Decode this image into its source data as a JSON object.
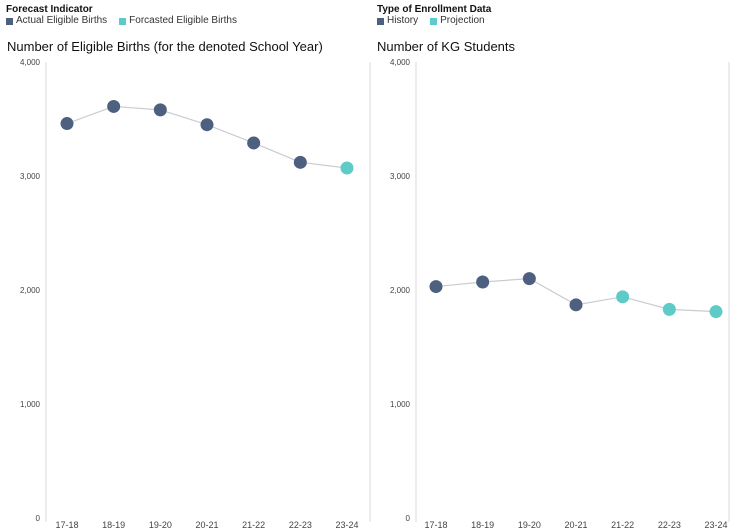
{
  "colors": {
    "actual": "#4e607f",
    "forecast": "#5fcbc8",
    "line": "#c9ccd2",
    "axis": "#d9d9d9"
  },
  "left_legend": {
    "title": "Forecast Indicator",
    "items": [
      {
        "label": "Actual Eligible Births",
        "color": "#4e607f"
      },
      {
        "label": "Forcasted Eligible Births",
        "color": "#5fcbc8"
      }
    ]
  },
  "right_legend": {
    "title": "Type of Enrollment Data",
    "items": [
      {
        "label": "History",
        "color": "#4e607f"
      },
      {
        "label": "Projection",
        "color": "#5fcbc8"
      }
    ]
  },
  "chart_data": [
    {
      "type": "line",
      "title": "Number of Eligible Births (for the denoted School Year)",
      "categories": [
        "17-18",
        "18-19",
        "19-20",
        "20-21",
        "21-22",
        "22-23",
        "23-24"
      ],
      "values": [
        3460,
        3610,
        3580,
        3450,
        3290,
        3120,
        3070
      ],
      "status": [
        "actual",
        "actual",
        "actual",
        "actual",
        "actual",
        "actual",
        "forecast"
      ],
      "ylim": [
        0,
        4000
      ],
      "yticks": [
        0,
        1000,
        2000,
        3000,
        4000
      ],
      "ytick_labels": [
        "0",
        "1,000",
        "2,000",
        "3,000",
        "4,000"
      ],
      "grid": false
    },
    {
      "type": "line",
      "title": "Number of KG Students",
      "categories": [
        "17-18",
        "18-19",
        "19-20",
        "20-21",
        "21-22",
        "22-23",
        "23-24"
      ],
      "values": [
        2030,
        2070,
        2100,
        1870,
        1940,
        1830,
        1810
      ],
      "status": [
        "actual",
        "actual",
        "actual",
        "actual",
        "forecast",
        "forecast",
        "forecast"
      ],
      "ylim": [
        0,
        4000
      ],
      "yticks": [
        0,
        1000,
        2000,
        3000,
        4000
      ],
      "ytick_labels": [
        "0",
        "1,000",
        "2,000",
        "3,000",
        "4,000"
      ],
      "grid": false
    }
  ]
}
